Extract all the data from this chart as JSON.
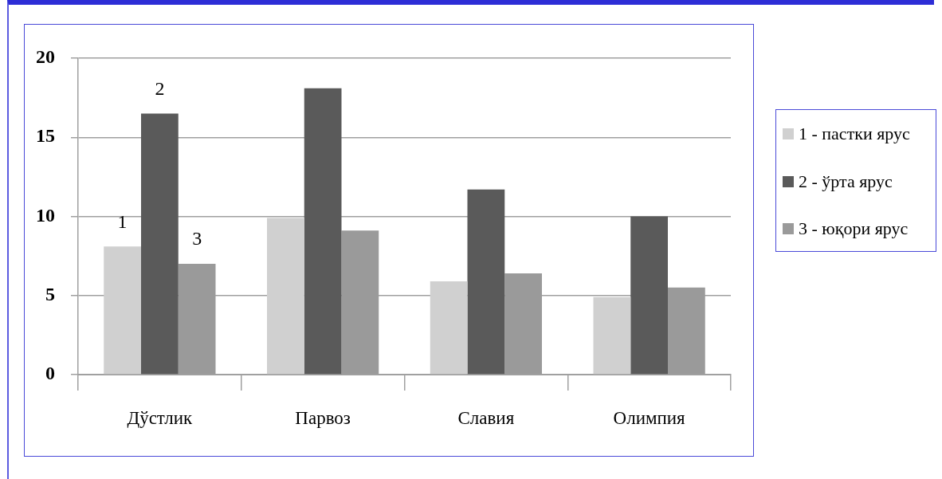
{
  "chart_data": {
    "type": "bar",
    "categories": [
      "Дўстлик",
      "Парвоз",
      "Славия",
      "Олимпия"
    ],
    "series": [
      {
        "name": "1 - пастки ярус",
        "color": "#d0d0d0",
        "values": [
          8.1,
          9.9,
          5.9,
          4.9
        ]
      },
      {
        "name": "2 - ўрта ярус",
        "color": "#5a5a5a",
        "values": [
          16.5,
          18.1,
          11.7,
          10.0
        ]
      },
      {
        "name": "3 - юқори ярус",
        "color": "#9a9a9a",
        "values": [
          7.0,
          9.1,
          6.4,
          5.5
        ]
      }
    ],
    "ylim": [
      0,
      20
    ],
    "yticks": [
      0,
      5,
      10,
      15,
      20
    ],
    "grid": "y",
    "legend": "right",
    "annotations": [
      "1",
      "2",
      "3"
    ]
  }
}
